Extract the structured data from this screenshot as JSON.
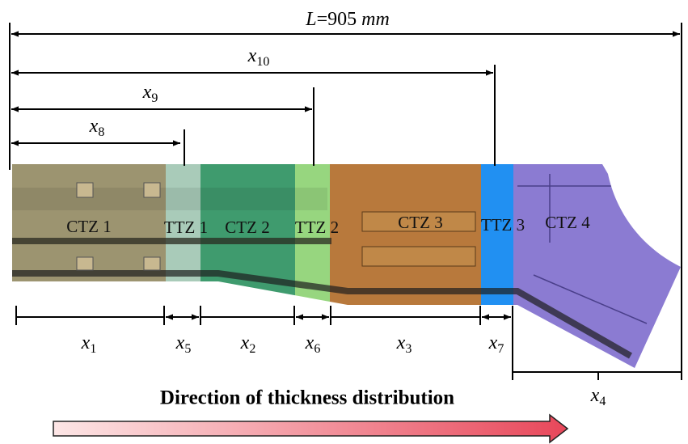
{
  "total_length": {
    "symbol": "L",
    "text": "=905 ",
    "unit": "mm"
  },
  "top_dimensions": [
    {
      "symbol": "x",
      "subscript": "10"
    },
    {
      "symbol": "x",
      "subscript": "9"
    },
    {
      "symbol": "x",
      "subscript": "8"
    }
  ],
  "zones": [
    "CTZ 1",
    "TTZ 1",
    "CTZ 2",
    "TTZ 2",
    "CTZ 3",
    "TTZ 3",
    "CTZ 4"
  ],
  "bottom_dimensions": [
    {
      "symbol": "x",
      "subscript": "1"
    },
    {
      "symbol": "x",
      "subscript": "5"
    },
    {
      "symbol": "x",
      "subscript": "2"
    },
    {
      "symbol": "x",
      "subscript": "6"
    },
    {
      "symbol": "x",
      "subscript": "3"
    },
    {
      "symbol": "x",
      "subscript": "7"
    },
    {
      "symbol": "x",
      "subscript": "4"
    }
  ],
  "arrow_caption": "Direction of thickness distribution"
}
